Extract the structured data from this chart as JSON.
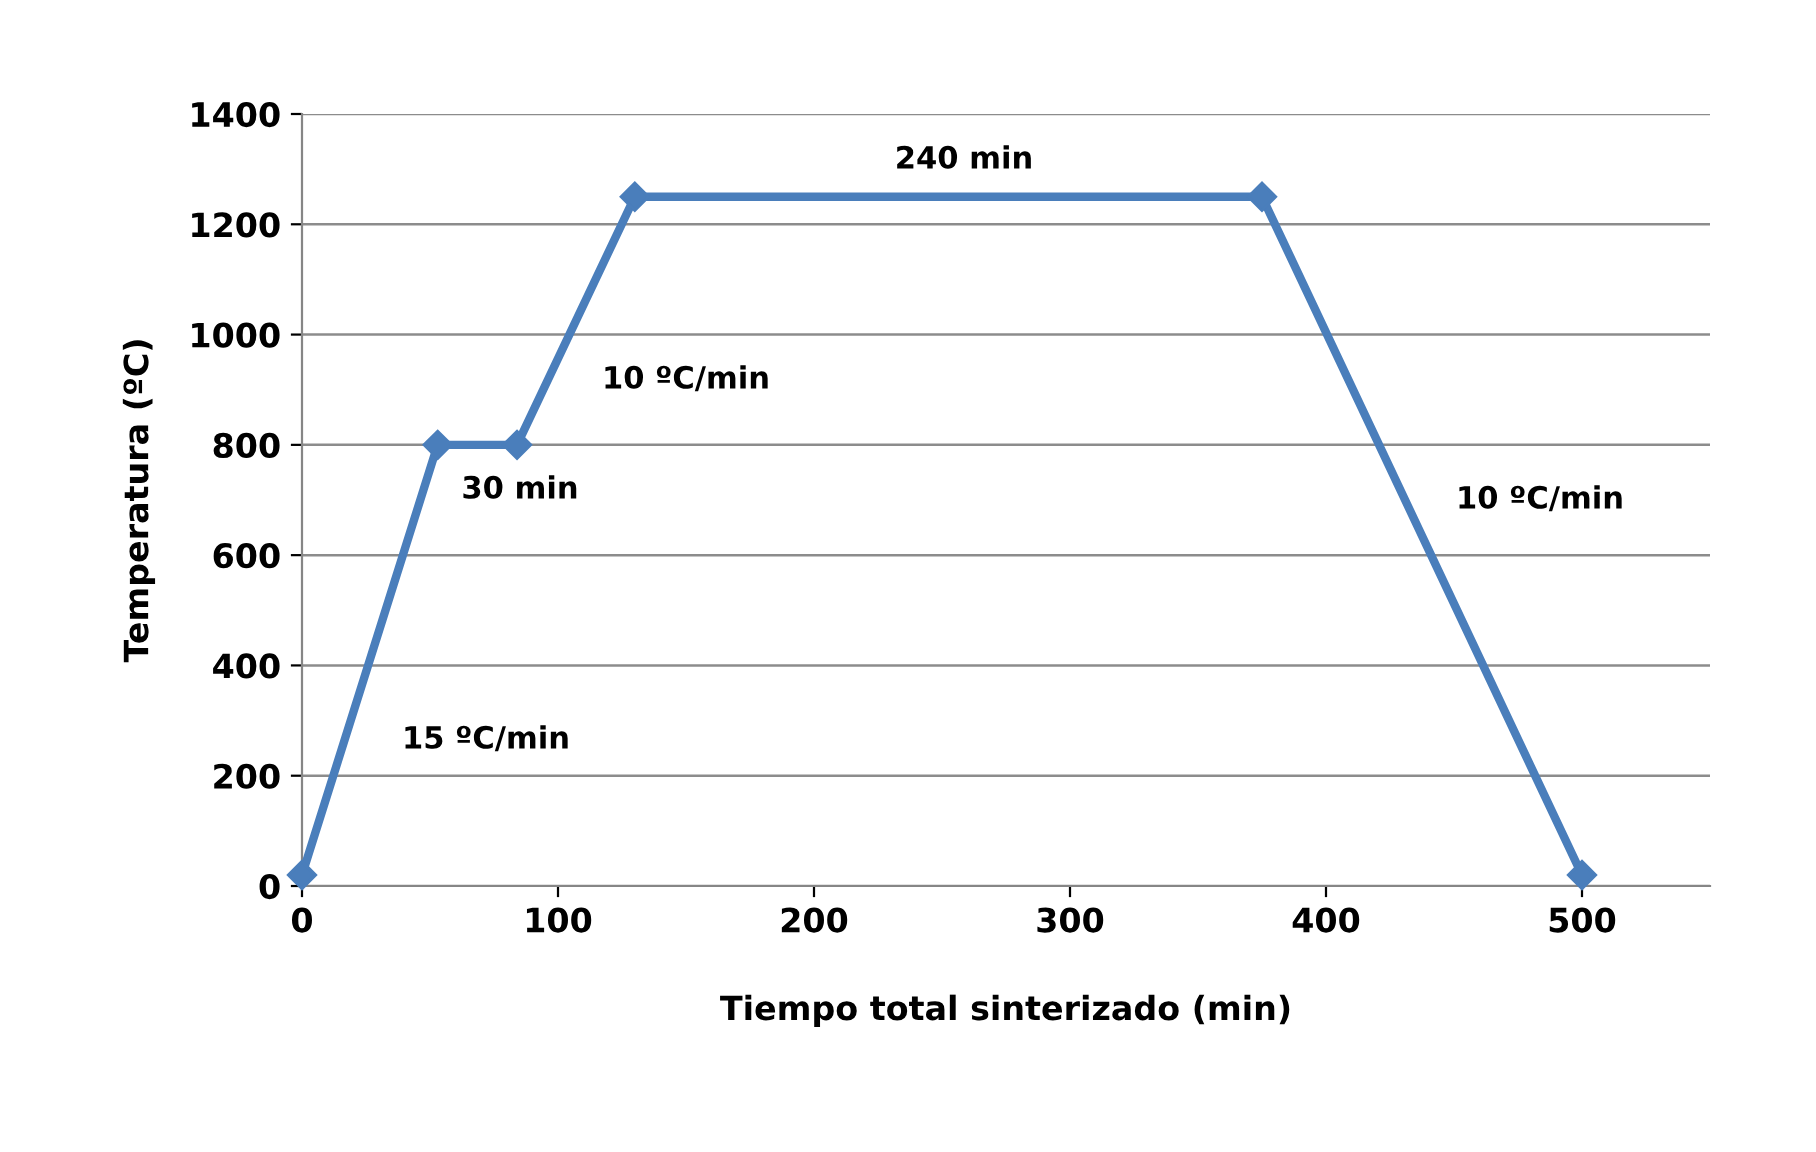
{
  "chart_data": {
    "type": "line",
    "xlabel": "Tiempo total sinterizado (min)",
    "ylabel": "Temperatura (ºC)",
    "x": [
      0,
      53,
      84,
      130,
      375,
      500
    ],
    "series": [
      {
        "color": "#4a7ebb",
        "values": [
          20,
          800,
          800,
          1250,
          1250,
          20
        ]
      }
    ],
    "xlim": [
      0,
      550
    ],
    "xticks": [
      0,
      100,
      200,
      300,
      400,
      500
    ],
    "ylim": [
      0,
      1400
    ],
    "yticks": [
      0,
      200,
      400,
      600,
      800,
      1000,
      1200,
      1400
    ],
    "grid": "y",
    "marker": "diamond",
    "line_style": "solid",
    "annotations": [
      "15 ºC/min",
      "30 min",
      "10 ºC/min",
      "240 min",
      "10 ºC/min"
    ]
  }
}
